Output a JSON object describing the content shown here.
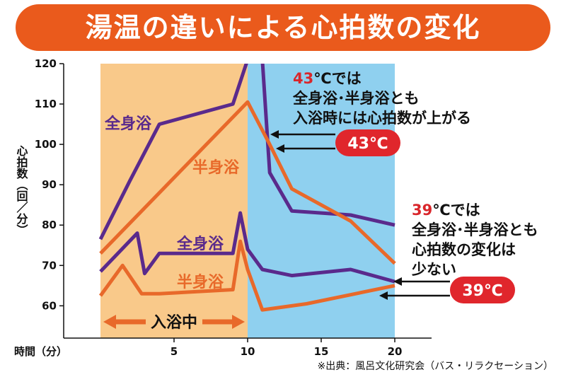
{
  "title": "湯温の違いによる心拍数の変化",
  "source": "※出典：風呂文化研究会（バス・リラクセーション）",
  "colors": {
    "full_bath": "#5a2a8c",
    "half_bath": "#e8692a",
    "bathing_zone": "#f9c98a",
    "post_zone": "#8fd0ef",
    "badge": "#e0262c",
    "title_bg": "#ea5a1c"
  },
  "chart_data": {
    "type": "line",
    "xlabel": "時間（分）",
    "ylabel": "心拍数（回／分）",
    "xlim": [
      -2.5,
      22.5
    ],
    "ylim": [
      52,
      120
    ],
    "xticks": [
      5,
      10,
      15,
      20
    ],
    "yticks": [
      60,
      70,
      80,
      90,
      100,
      110,
      120
    ],
    "bands": [
      {
        "from": 0,
        "to": 10,
        "color": "bathing_zone",
        "label": "入浴中"
      },
      {
        "from": 10,
        "to": 20,
        "color": "post_zone"
      }
    ],
    "series": [
      {
        "name": "全身浴",
        "group": "43℃",
        "color": "full_bath",
        "x": [
          0,
          2,
          4,
          9,
          10,
          11,
          11.5,
          13,
          17,
          20
        ],
        "y": [
          76.5,
          91,
          105,
          110,
          121,
          121,
          93,
          83.5,
          82.5,
          80
        ]
      },
      {
        "name": "半身浴",
        "group": "43℃",
        "color": "half_bath",
        "x": [
          0,
          4,
          10,
          11.5,
          13,
          17,
          20
        ],
        "y": [
          73,
          88,
          110.5,
          100,
          89,
          81,
          70.5
        ]
      },
      {
        "name": "全身浴",
        "group": "39℃",
        "color": "full_bath",
        "x": [
          0,
          2.5,
          3,
          4,
          9,
          9.5,
          10,
          11,
          13,
          17,
          20
        ],
        "y": [
          68.5,
          78,
          68,
          73,
          73,
          83,
          74,
          69,
          67.5,
          69,
          66
        ]
      },
      {
        "name": "半身浴",
        "group": "39℃",
        "color": "half_bath",
        "x": [
          0,
          1.5,
          2.8,
          4,
          9,
          9.5,
          10,
          11,
          14,
          20
        ],
        "y": [
          62.5,
          70,
          63,
          63,
          64,
          76,
          69,
          59,
          60.5,
          65
        ]
      }
    ],
    "annotations": {
      "hot": {
        "temp": "43",
        "lines": [
          "℃では",
          "全身浴･半身浴とも",
          "入浴時には心拍数が上がる"
        ],
        "badge": "43℃"
      },
      "warm": {
        "temp": "39",
        "lines": [
          "℃では",
          "全身浴･半身浴とも",
          "心拍数の変化は",
          "少ない"
        ],
        "badge": "39℃"
      }
    }
  }
}
